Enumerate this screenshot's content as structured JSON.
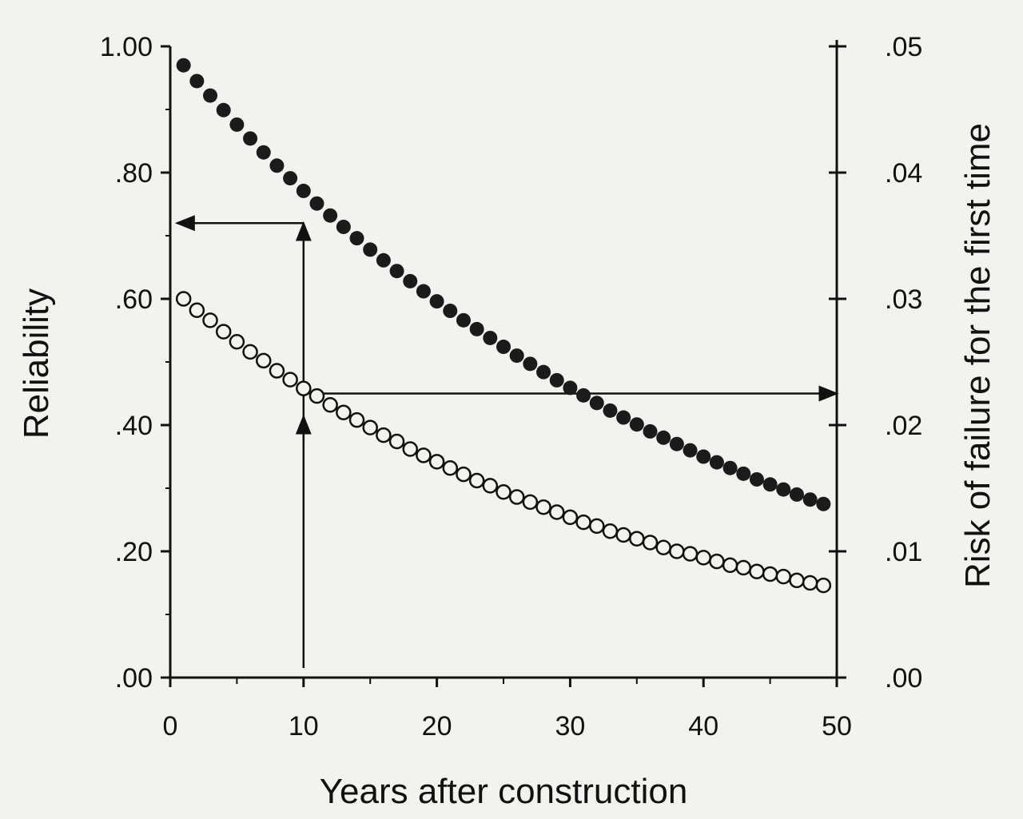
{
  "chart_data": {
    "type": "scatter",
    "title": "",
    "xlabel": "Years after construction",
    "ylabel": "Reliability",
    "y2label": "Risk of failure for the first time",
    "xlim": [
      0,
      50
    ],
    "ylim": [
      0,
      1.0
    ],
    "y2lim": [
      0,
      0.05
    ],
    "x_ticks": [
      "0",
      "10",
      "20",
      "30",
      "40",
      "50"
    ],
    "y_ticks": [
      ".00",
      ".20",
      ".40",
      ".60",
      ".80",
      "1.00"
    ],
    "y2_ticks": [
      ".00",
      ".01",
      ".02",
      ".03",
      ".04",
      ".05"
    ],
    "grid": false,
    "legend": "none",
    "series": [
      {
        "axis": "left",
        "marker": "filled",
        "x": [
          1,
          2,
          3,
          4,
          5,
          6,
          7,
          8,
          9,
          10,
          11,
          12,
          13,
          14,
          15,
          16,
          17,
          18,
          19,
          20,
          21,
          22,
          23,
          24,
          25,
          26,
          27,
          28,
          29,
          30,
          31,
          32,
          33,
          34,
          35,
          36,
          37,
          38,
          39,
          40,
          41,
          42,
          43,
          44,
          45,
          46,
          47,
          48,
          49
        ],
        "values": [
          0.97,
          0.945,
          0.922,
          0.899,
          0.876,
          0.854,
          0.832,
          0.811,
          0.791,
          0.771,
          0.751,
          0.732,
          0.714,
          0.696,
          0.678,
          0.661,
          0.644,
          0.628,
          0.612,
          0.596,
          0.581,
          0.566,
          0.552,
          0.538,
          0.524,
          0.51,
          0.497,
          0.484,
          0.471,
          0.459,
          0.447,
          0.435,
          0.423,
          0.412,
          0.401,
          0.39,
          0.38,
          0.37,
          0.36,
          0.35,
          0.341,
          0.332,
          0.323,
          0.314,
          0.306,
          0.298,
          0.29,
          0.282,
          0.275
        ]
      },
      {
        "axis": "right",
        "marker": "open",
        "x": [
          1,
          2,
          3,
          4,
          5,
          6,
          7,
          8,
          9,
          10,
          11,
          12,
          13,
          14,
          15,
          16,
          17,
          18,
          19,
          20,
          21,
          22,
          23,
          24,
          25,
          26,
          27,
          28,
          29,
          30,
          31,
          32,
          33,
          34,
          35,
          36,
          37,
          38,
          39,
          40,
          41,
          42,
          43,
          44,
          45,
          46,
          47,
          48,
          49
        ],
        "values": [
          0.03,
          0.0291,
          0.0283,
          0.0274,
          0.0266,
          0.0258,
          0.0251,
          0.0243,
          0.0236,
          0.0229,
          0.0223,
          0.0216,
          0.021,
          0.0204,
          0.0198,
          0.0192,
          0.0187,
          0.0181,
          0.0176,
          0.0171,
          0.0166,
          0.0161,
          0.0156,
          0.0152,
          0.0147,
          0.0143,
          0.0139,
          0.0135,
          0.0131,
          0.0127,
          0.0123,
          0.012,
          0.0116,
          0.0113,
          0.011,
          0.0107,
          0.0103,
          0.01,
          0.0098,
          0.0095,
          0.0092,
          0.0089,
          0.0087,
          0.0084,
          0.0082,
          0.008,
          0.0077,
          0.0075,
          0.0073
        ]
      }
    ],
    "annotations": [
      {
        "type": "arrow",
        "from": [
          10,
          0.0
        ],
        "to": [
          10,
          0.72
        ],
        "axis": "left"
      },
      {
        "type": "arrow",
        "from": [
          10,
          0.72
        ],
        "to": [
          0.5,
          0.72
        ],
        "axis": "left"
      },
      {
        "type": "arrow",
        "from": [
          10,
          0.0225
        ],
        "to": [
          50,
          0.0225
        ],
        "axis": "right"
      }
    ]
  }
}
